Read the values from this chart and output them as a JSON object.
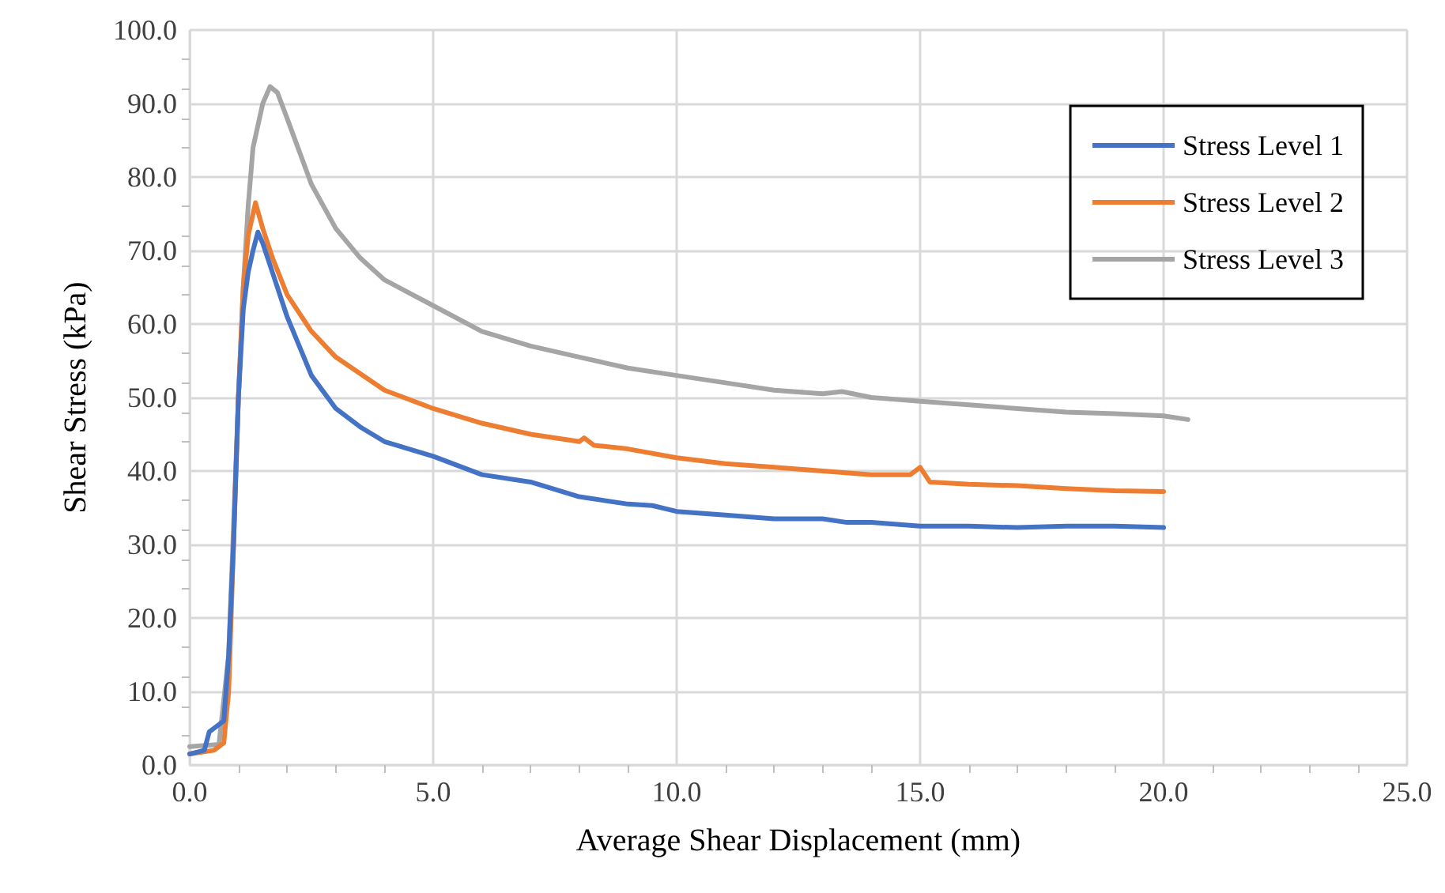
{
  "chart_data": {
    "type": "line",
    "xlabel": "Average Shear Displacement (mm)",
    "ylabel": "Shear Stress (kPa)",
    "xlim": [
      0,
      25
    ],
    "ylim": [
      0,
      100
    ],
    "xticks": [
      {
        "value": 0,
        "label": "0.0"
      },
      {
        "value": 5,
        "label": "5.0"
      },
      {
        "value": 10,
        "label": "10.0"
      },
      {
        "value": 15,
        "label": "15.0"
      },
      {
        "value": 20,
        "label": "20.0"
      },
      {
        "value": 25,
        "label": "25.0"
      }
    ],
    "yticks": [
      {
        "value": 0,
        "label": "0.0"
      },
      {
        "value": 10,
        "label": "10.0"
      },
      {
        "value": 20,
        "label": "20.0"
      },
      {
        "value": 30,
        "label": "30.0"
      },
      {
        "value": 40,
        "label": "40.0"
      },
      {
        "value": 50,
        "label": "50.0"
      },
      {
        "value": 60,
        "label": "60.0"
      },
      {
        "value": 70,
        "label": "70.0"
      },
      {
        "value": 80,
        "label": "80.0"
      },
      {
        "value": 90,
        "label": "90.0"
      },
      {
        "value": 100,
        "label": "100.0"
      }
    ],
    "grid": true,
    "legend": "top right",
    "marker": "none",
    "line_style": "solid",
    "series": [
      {
        "name": "Stress Level 1",
        "color": "#4472c4",
        "x": [
          0,
          0.3,
          0.4,
          0.6,
          0.7,
          0.8,
          0.9,
          1.0,
          1.1,
          1.2,
          1.3,
          1.4,
          1.5,
          1.7,
          2.0,
          2.5,
          3.0,
          3.5,
          4.0,
          5.0,
          6.0,
          7.0,
          8.0,
          9.0,
          9.5,
          10.0,
          11,
          12,
          13,
          13.5,
          14,
          15,
          16,
          17,
          18,
          19,
          20
        ],
        "values": [
          1.5,
          2,
          4.5,
          5.5,
          6,
          15,
          30,
          50,
          62,
          67,
          70,
          72.5,
          71,
          67,
          61,
          53,
          48.5,
          46,
          44,
          42,
          39.5,
          38.5,
          36.5,
          35.5,
          35.3,
          34.5,
          34,
          33.5,
          33.5,
          33,
          33,
          32.5,
          32.5,
          32.3,
          32.5,
          32.5,
          32.3
        ]
      },
      {
        "name": "Stress Level 2",
        "color": "#ed7d31",
        "x": [
          0,
          0.5,
          0.7,
          0.8,
          0.9,
          1.0,
          1.1,
          1.2,
          1.35,
          1.5,
          1.7,
          2.0,
          2.5,
          3.0,
          4.0,
          5.0,
          6.0,
          7.0,
          8.0,
          8.1,
          8.3,
          9,
          10,
          11,
          12,
          13,
          14,
          14.8,
          15,
          15.2,
          16,
          17,
          18,
          19,
          20
        ],
        "values": [
          1.5,
          2,
          3,
          10,
          30,
          50,
          65,
          72,
          76.5,
          73,
          69,
          64,
          59,
          55.5,
          51,
          48.5,
          46.5,
          45,
          44,
          44.5,
          43.5,
          43,
          41.8,
          41,
          40.5,
          40,
          39.5,
          39.5,
          40.5,
          38.5,
          38.2,
          38,
          37.6,
          37.3,
          37.2
        ]
      },
      {
        "name": "Stress Level 3",
        "color": "#a5a5a5",
        "x": [
          0,
          0.6,
          0.8,
          1.0,
          1.1,
          1.2,
          1.3,
          1.5,
          1.65,
          1.8,
          2.0,
          2.5,
          3.0,
          3.5,
          4.0,
          5.0,
          6.0,
          7.0,
          8.0,
          9.0,
          10.0,
          11,
          12,
          13,
          13.4,
          14,
          15,
          16,
          17,
          18,
          19,
          20,
          20.5
        ],
        "values": [
          2.5,
          2.8,
          15,
          50,
          65,
          76,
          84,
          90,
          92.3,
          91.5,
          88,
          79,
          73,
          69,
          66,
          62.5,
          59,
          57,
          55.5,
          54,
          53,
          52,
          51,
          50.5,
          50.8,
          50,
          49.5,
          49,
          48.5,
          48,
          47.8,
          47.5,
          47
        ]
      }
    ]
  }
}
